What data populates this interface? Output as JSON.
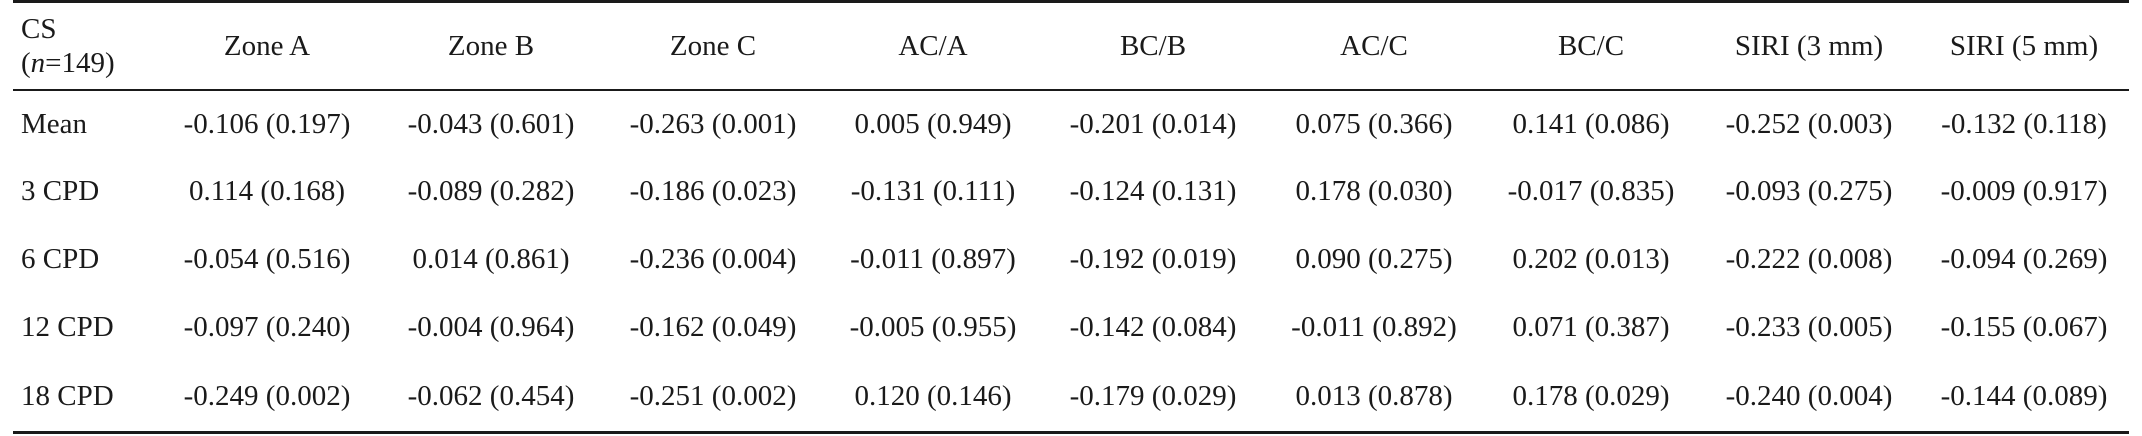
{
  "table": {
    "corner_label_line1": "CS",
    "corner_label_paren_open": "(",
    "corner_label_n": "n",
    "corner_label_rest": "=149)",
    "columns": [
      "Zone A",
      "Zone B",
      "Zone C",
      "AC/A",
      "BC/B",
      "AC/C",
      "BC/C",
      "SIRI (3 mm)",
      "SIRI (5 mm)"
    ],
    "rows": [
      {
        "label": "Mean",
        "cells": [
          "-0.106 (0.197)",
          "-0.043 (0.601)",
          "-0.263 (0.001)",
          "0.005 (0.949)",
          "-0.201 (0.014)",
          "0.075 (0.366)",
          "0.141 (0.086)",
          "-0.252 (0.003)",
          "-0.132 (0.118)"
        ]
      },
      {
        "label": "3 CPD",
        "cells": [
          "0.114 (0.168)",
          "-0.089 (0.282)",
          "-0.186 (0.023)",
          "-0.131 (0.111)",
          "-0.124 (0.131)",
          "0.178 (0.030)",
          "-0.017 (0.835)",
          "-0.093 (0.275)",
          "-0.009 (0.917)"
        ]
      },
      {
        "label": "6 CPD",
        "cells": [
          "-0.054 (0.516)",
          "0.014 (0.861)",
          "-0.236 (0.004)",
          "-0.011 (0.897)",
          "-0.192 (0.019)",
          "0.090 (0.275)",
          "0.202 (0.013)",
          "-0.222 (0.008)",
          "-0.094 (0.269)"
        ]
      },
      {
        "label": "12 CPD",
        "cells": [
          "-0.097 (0.240)",
          "-0.004 (0.964)",
          "-0.162 (0.049)",
          "-0.005 (0.955)",
          "-0.142 (0.084)",
          "-0.011 (0.892)",
          "0.071 (0.387)",
          "-0.233 (0.005)",
          "-0.155 (0.067)"
        ]
      },
      {
        "label": "18 CPD",
        "cells": [
          "-0.249 (0.002)",
          "-0.062 (0.454)",
          "-0.251 (0.002)",
          "0.120 (0.146)",
          "-0.179 (0.029)",
          "0.013 (0.878)",
          "0.178 (0.029)",
          "-0.240 (0.004)",
          "-0.144 (0.089)"
        ]
      }
    ]
  }
}
